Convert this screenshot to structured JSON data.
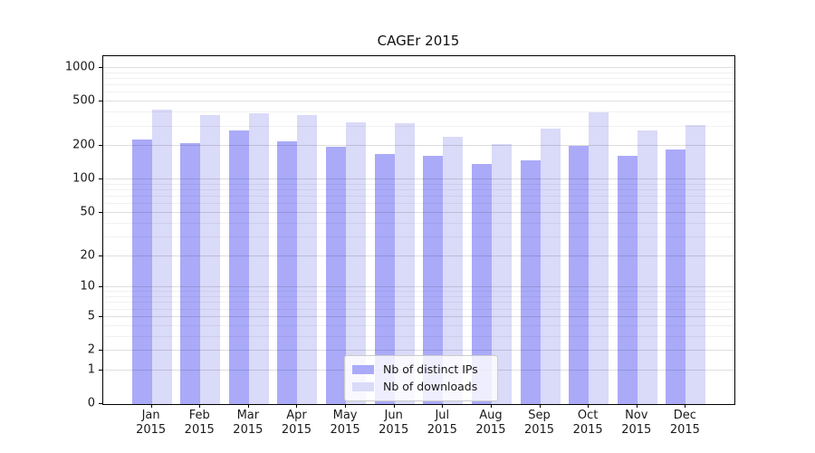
{
  "title": "CAGEr 2015",
  "colors": {
    "ips_bar": "#aaaaf9",
    "downloads_bar": "#dadaf9",
    "axis": "#000000",
    "grid_major": "#dddddd",
    "grid_minor": "#f0f0f0"
  },
  "legend": {
    "ips_label": "Nb of distinct IPs",
    "downloads_label": "Nb of downloads"
  },
  "chart_data": {
    "type": "bar",
    "title": "CAGEr 2015",
    "categories": [
      "Jan 2015",
      "Feb 2015",
      "Mar 2015",
      "Apr 2015",
      "May 2015",
      "Jun 2015",
      "Jul 2015",
      "Aug 2015",
      "Sep 2015",
      "Oct 2015",
      "Nov 2015",
      "Dec 2015"
    ],
    "series": [
      {
        "name": "Nb of distinct IPs",
        "color": "#aaaaf9",
        "values": [
          228,
          213,
          275,
          221,
          196,
          169,
          164,
          137,
          148,
          201,
          163,
          186
        ]
      },
      {
        "name": "Nb of downloads",
        "color": "#dadaf9",
        "values": [
          424,
          381,
          392,
          379,
          325,
          322,
          242,
          207,
          287,
          400,
          277,
          310
        ]
      }
    ],
    "xlabel": "",
    "ylabel": "",
    "yscale": "log1p",
    "yticks": [
      0,
      1,
      2,
      5,
      10,
      20,
      50,
      100,
      200,
      500,
      1000
    ],
    "ylim": [
      0,
      1250
    ],
    "grid": true,
    "legend_position": "lower center"
  }
}
